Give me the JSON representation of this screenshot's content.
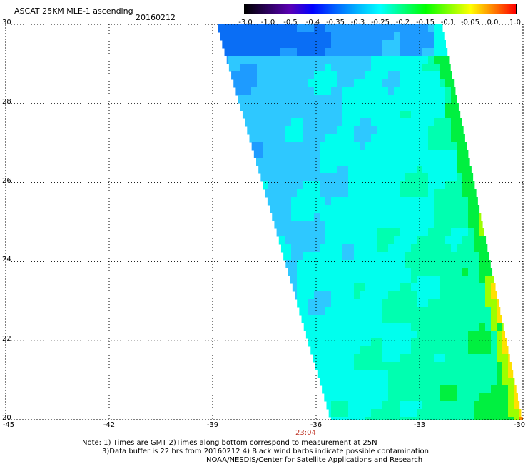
{
  "header": {
    "title": "ASCAT 25KM MLE-1 ascending",
    "date": "20160212"
  },
  "colorbar": {
    "tick_labels": [
      "-3.0",
      "-1.0",
      "-0.5",
      "-0.4",
      "-0.35",
      "-0.3",
      "-0.25",
      "-0.2",
      "-0.15",
      "-0.1",
      "-0.05",
      "0.0",
      "1.0"
    ],
    "colors": [
      "#000000",
      "#2a005a",
      "#5a00b4",
      "#0000ff",
      "#0060ff",
      "#00b4ff",
      "#00ffff",
      "#00ff80",
      "#00ff00",
      "#80ff00",
      "#ffff00",
      "#ff8000",
      "#ff0000"
    ]
  },
  "map": {
    "lat_labels": [
      "30",
      "28",
      "26",
      "24",
      "22",
      "20"
    ],
    "lon_labels": [
      "-45",
      "-42",
      "-39",
      "-36",
      "-33",
      "-30"
    ],
    "time_label": "23:04",
    "grid_color": "#000000",
    "swath_palette": {
      "deep_blue": "#0a6ef5",
      "blue": "#1e9bff",
      "light_blue": "#2ec8ff",
      "cyan": "#00ffee",
      "aqua_green": "#00ffb0",
      "green": "#00f040",
      "lime": "#9cff00",
      "yellow": "#ffe000",
      "orange": "#ff8c00"
    }
  },
  "notes": {
    "line1": "Note: 1) Times are GMT 2)Times along bottom correspond to measurement at 25N",
    "line2": "3)Data buffer is 22 hrs from 20160212 4) Black wind barbs indicate possible contamination",
    "line3": "NOAA/NESDIS/Center for Satellite Applications and Research"
  }
}
